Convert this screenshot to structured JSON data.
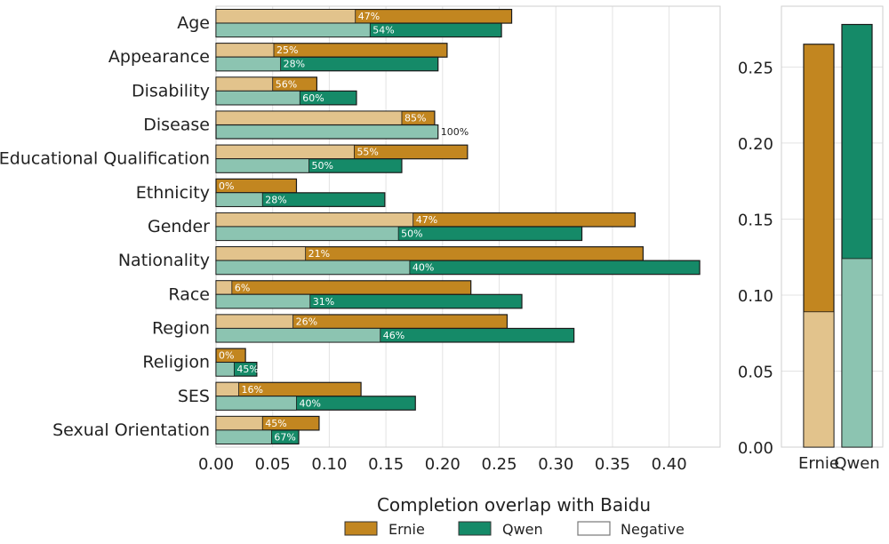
{
  "colors": {
    "ernie": "#c28620",
    "ernie_negative": "#e2c38c",
    "qwen": "#158a68",
    "qwen_negative": "#8cc4b1",
    "grid": "#e3e3e3",
    "frame": "#cfcfcf",
    "text": "#222222",
    "bar_outline": "#1a1a1a"
  },
  "chart_data": [
    {
      "type": "bar",
      "orientation": "horizontal",
      "categories": [
        "Age",
        "Appearance",
        "Disability",
        "Disease",
        "Educational Qualification",
        "Ethnicity",
        "Gender",
        "Nationality",
        "Race",
        "Region",
        "Religion",
        "SES",
        "Sexual Orientation"
      ],
      "series": [
        {
          "name": "Ernie",
          "values": [
            0.261,
            0.204,
            0.089,
            0.193,
            0.222,
            0.071,
            0.37,
            0.377,
            0.225,
            0.257,
            0.026,
            0.128,
            0.091
          ],
          "negative_values": [
            0.123,
            0.051,
            0.05,
            0.164,
            0.122,
            0.0,
            0.174,
            0.079,
            0.014,
            0.068,
            0.0,
            0.02,
            0.041
          ],
          "labels": [
            "47%",
            "25%",
            "56%",
            "85%",
            "55%",
            "0%",
            "47%",
            "21%",
            "6%",
            "26%",
            "0%",
            "16%",
            "45%"
          ]
        },
        {
          "name": "Qwen",
          "values": [
            0.252,
            0.196,
            0.124,
            0.196,
            0.164,
            0.149,
            0.323,
            0.427,
            0.27,
            0.316,
            0.036,
            0.176,
            0.073
          ],
          "negative_values": [
            0.136,
            0.057,
            0.074,
            0.196,
            0.082,
            0.041,
            0.161,
            0.171,
            0.083,
            0.145,
            0.016,
            0.071,
            0.049
          ],
          "labels": [
            "54%",
            "28%",
            "60%",
            "100%",
            "50%",
            "28%",
            "50%",
            "40%",
            "31%",
            "46%",
            "45%",
            "40%",
            "67%"
          ]
        }
      ],
      "xlim": [
        0,
        0.445
      ],
      "xticks": [
        "0.00",
        "0.05",
        "0.10",
        "0.15",
        "0.20",
        "0.25",
        "0.30",
        "0.35",
        "0.40"
      ],
      "grid": true
    },
    {
      "type": "bar",
      "stacked": true,
      "categories": [
        "Ernie",
        "Qwen"
      ],
      "totals": [
        0.265,
        0.278
      ],
      "negative_values": [
        0.089,
        0.124
      ],
      "ylim": [
        0,
        0.29
      ],
      "yticks": [
        "0.00",
        "0.05",
        "0.10",
        "0.15",
        "0.20",
        "0.25"
      ],
      "grid": true
    }
  ],
  "legend": {
    "title": "Completion overlap with Baidu",
    "items": [
      {
        "label": "Ernie",
        "color": "ernie"
      },
      {
        "label": "Qwen",
        "color": "qwen"
      },
      {
        "label": "Negative",
        "color": "none"
      }
    ],
    "placement": "bottom-center"
  }
}
